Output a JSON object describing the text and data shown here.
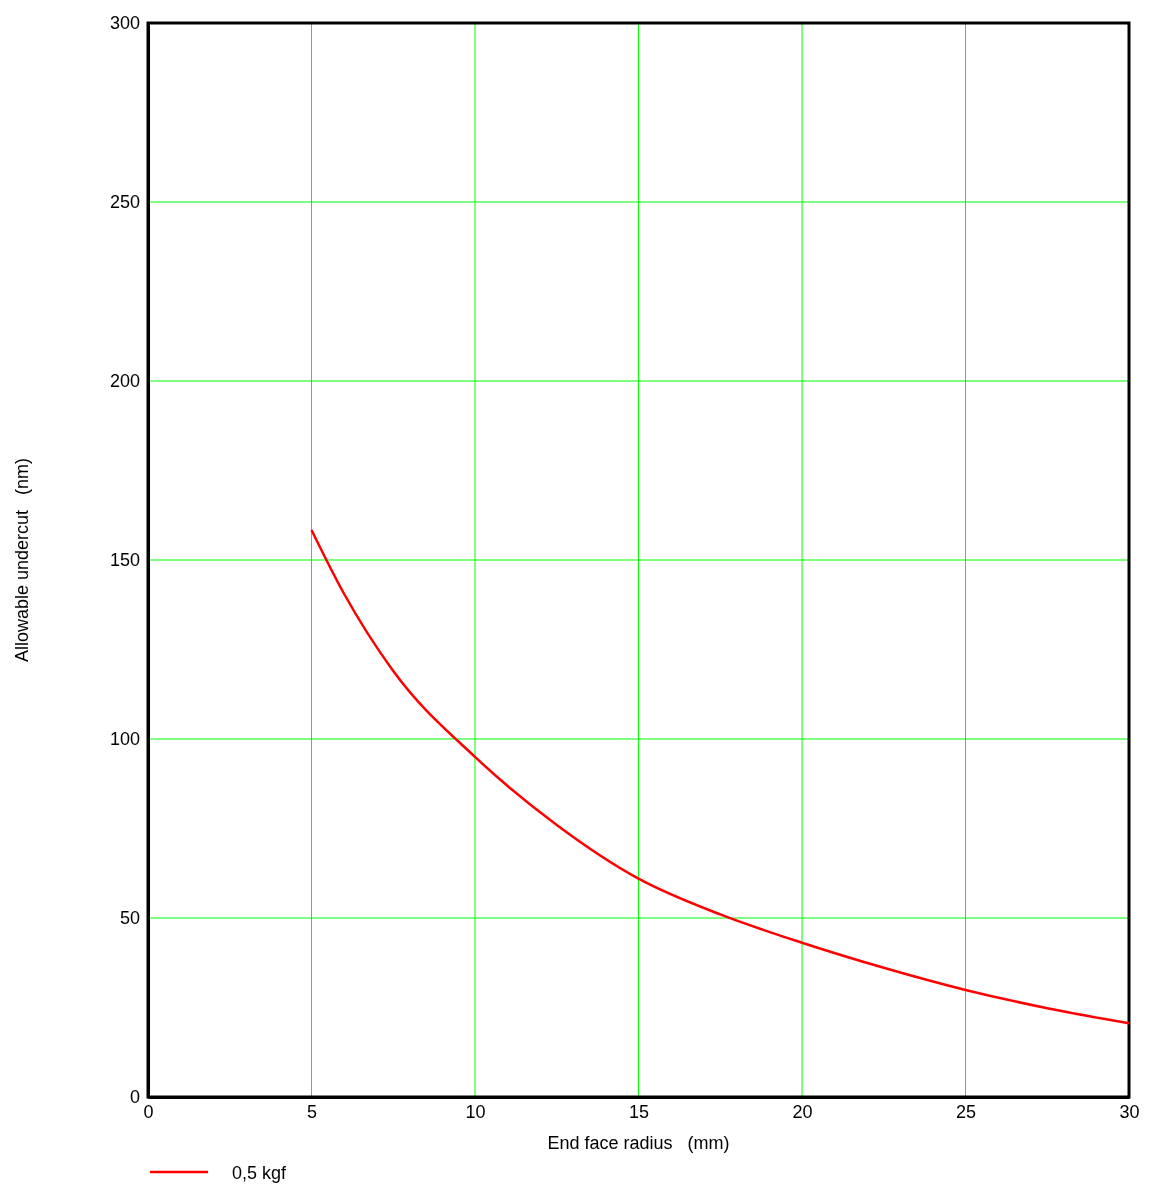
{
  "chart_data": {
    "type": "line",
    "xlabel": "End face radius   (mm)",
    "ylabel": "Allowable undercut   (nm)",
    "xlim": [
      0,
      30
    ],
    "xticks": [
      0,
      5,
      10,
      15,
      20,
      25,
      30
    ],
    "ylim": [
      0,
      300
    ],
    "yticks": [
      0,
      50,
      100,
      150,
      200,
      250,
      300
    ],
    "grid": true,
    "legend": "bottom left",
    "line_style": "solid",
    "marker": "none",
    "series": [
      {
        "name": "0,5 kgf",
        "color": "#ff0000",
        "x": [
          5,
          6,
          7.5,
          10,
          12.5,
          15,
          17.5,
          20,
          22.5,
          25,
          27.5,
          30
        ],
        "values": [
          158.4,
          140.5,
          119,
          95,
          76,
          61,
          51,
          43.1,
          36.1,
          29.9,
          24.8,
          20.6
        ]
      }
    ]
  }
}
